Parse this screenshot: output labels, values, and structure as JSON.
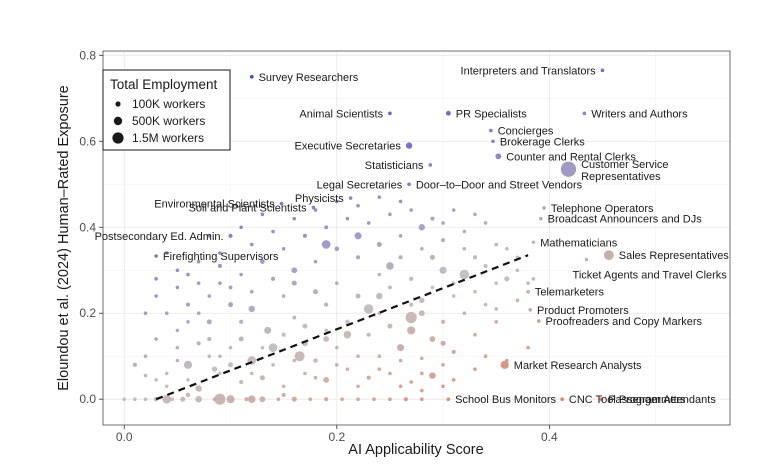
{
  "chart_data": {
    "type": "scatter",
    "xlabel": "AI Applicability Score",
    "ylabel": "Eloundou et al. (2024) Human–Rated Exposure",
    "xlim": [
      -0.02,
      0.57
    ],
    "ylim": [
      -0.06,
      0.81
    ],
    "x_ticks": [
      0.0,
      0.2,
      0.4
    ],
    "x_tick_labels": [
      "0.0",
      "0.2",
      "0.4"
    ],
    "y_ticks": [
      0.0,
      0.2,
      0.4,
      0.6,
      0.8
    ],
    "y_tick_labels": [
      "0.0",
      "0.2",
      "0.4",
      "0.6",
      "0.8"
    ],
    "grid": true,
    "legend": {
      "title": "Total Employment",
      "placement": "top-left",
      "entries": [
        {
          "label": "100K workers",
          "employment": 100000
        },
        {
          "label": "500K workers",
          "employment": 500000
        },
        {
          "label": "1.5M workers",
          "employment": 1500000
        }
      ]
    },
    "trend_line": {
      "style": "dashed",
      "x": [
        0.03,
        0.38
      ],
      "y": [
        0.0,
        0.335
      ]
    },
    "labeled_points": [
      {
        "label": "Survey Researchers",
        "x": 0.12,
        "y": 0.75,
        "employment": 15000,
        "label_side": "right"
      },
      {
        "label": "Interpreters and Translators",
        "x": 0.45,
        "y": 0.765,
        "employment": 50000,
        "label_side": "left"
      },
      {
        "label": "Animal Scientists",
        "x": 0.25,
        "y": 0.665,
        "employment": 3000,
        "label_side": "left"
      },
      {
        "label": "PR Specialists",
        "x": 0.305,
        "y": 0.665,
        "employment": 280000,
        "label_side": "right"
      },
      {
        "label": "Writers and Authors",
        "x": 0.433,
        "y": 0.665,
        "employment": 45000,
        "label_side": "right"
      },
      {
        "label": "Concierges",
        "x": 0.345,
        "y": 0.625,
        "employment": 35000,
        "label_side": "right"
      },
      {
        "label": "Brokerage Clerks",
        "x": 0.347,
        "y": 0.6,
        "employment": 45000,
        "label_side": "right"
      },
      {
        "label": "Executive Secretaries",
        "x": 0.268,
        "y": 0.59,
        "employment": 480000,
        "label_side": "left"
      },
      {
        "label": "Counter and Rental Clerks",
        "x": 0.352,
        "y": 0.565,
        "employment": 400000,
        "label_side": "right"
      },
      {
        "label": "Statisticians",
        "x": 0.288,
        "y": 0.545,
        "employment": 30000,
        "label_side": "left"
      },
      {
        "label": "Customer Service Representatives",
        "x": 0.418,
        "y": 0.535,
        "employment": 2800000,
        "label_side": "right"
      },
      {
        "label": "Legal Secretaries",
        "x": 0.268,
        "y": 0.5,
        "employment": 150000,
        "label_side": "left"
      },
      {
        "label": "Door–to–Door and Street Vendors",
        "x": 0.268,
        "y": 0.5,
        "employment": 5000,
        "label_side": "right"
      },
      {
        "label": "Physicists",
        "x": 0.213,
        "y": 0.468,
        "employment": 20000,
        "label_side": "left"
      },
      {
        "label": "Environmental Scientists",
        "x": 0.148,
        "y": 0.455,
        "employment": 85000,
        "label_side": "left"
      },
      {
        "label": "Soil and Plant Scientists",
        "x": 0.178,
        "y": 0.446,
        "employment": 10000,
        "label_side": "left"
      },
      {
        "label": "Telephone Operators",
        "x": 0.395,
        "y": 0.445,
        "employment": 5000,
        "label_side": "right"
      },
      {
        "label": "Broadcast Announcers and DJs",
        "x": 0.392,
        "y": 0.42,
        "employment": 30000,
        "label_side": "right"
      },
      {
        "label": "Postsecondary Ed. Admin.",
        "x": 0.1,
        "y": 0.38,
        "employment": 180000,
        "label_side": "left"
      },
      {
        "label": "Mathematicians",
        "x": 0.385,
        "y": 0.365,
        "employment": 2500,
        "label_side": "right"
      },
      {
        "label": "Firefighting Supervisors",
        "x": 0.03,
        "y": 0.333,
        "employment": 75000,
        "label_side": "right"
      },
      {
        "label": "Sales Representatives",
        "x": 0.456,
        "y": 0.335,
        "employment": 1150000,
        "label_side": "right"
      },
      {
        "label": "Ticket Agents and Travel Clerks",
        "x": 0.435,
        "y": 0.325,
        "employment": 120000,
        "label_side": "below"
      },
      {
        "label": "Telemarketers",
        "x": 0.38,
        "y": 0.25,
        "employment": 110000,
        "label_side": "right"
      },
      {
        "label": "Product Promoters",
        "x": 0.382,
        "y": 0.208,
        "employment": 70000,
        "label_side": "right"
      },
      {
        "label": "Proofreaders and Copy Markers",
        "x": 0.39,
        "y": 0.182,
        "employment": 10000,
        "label_side": "right"
      },
      {
        "label": "Market Research Analysts",
        "x": 0.358,
        "y": 0.08,
        "employment": 800000,
        "label_side": "right"
      },
      {
        "label": "School Bus Monitors",
        "x": 0.305,
        "y": 0.0,
        "employment": 60000,
        "label_side": "right"
      },
      {
        "label": "CNC Tool Programmers",
        "x": 0.412,
        "y": 0.0,
        "employment": 40000,
        "label_side": "right"
      },
      {
        "label": "Passenger Attendants",
        "x": 0.449,
        "y": 0.0,
        "employment": 20000,
        "label_side": "right"
      }
    ],
    "unlabeled_points": [
      [
        0.0,
        0.0,
        20000
      ],
      [
        0.01,
        0.0,
        100000
      ],
      [
        0.02,
        0.0,
        60000
      ],
      [
        0.03,
        0.0,
        250000
      ],
      [
        0.045,
        0.0,
        40000
      ],
      [
        0.055,
        0.0,
        300000
      ],
      [
        0.07,
        0.0,
        500000
      ],
      [
        0.085,
        0.0,
        150000
      ],
      [
        0.1,
        0.0,
        800000
      ],
      [
        0.115,
        0.0,
        200000
      ],
      [
        0.13,
        0.0,
        400000
      ],
      [
        0.145,
        0.0,
        120000
      ],
      [
        0.16,
        0.0,
        300000
      ],
      [
        0.175,
        0.0,
        90000
      ],
      [
        0.19,
        0.0,
        200000
      ],
      [
        0.205,
        0.0,
        60000
      ],
      [
        0.22,
        0.0,
        120000
      ],
      [
        0.235,
        0.0,
        40000
      ],
      [
        0.25,
        0.0,
        90000
      ],
      [
        0.265,
        0.0,
        200000
      ],
      [
        0.28,
        0.0,
        30000
      ],
      [
        0.04,
        0.0,
        900000
      ],
      [
        0.09,
        0.0,
        1500000
      ],
      [
        0.12,
        0.0,
        700000
      ],
      [
        0.06,
        0.01,
        250000
      ],
      [
        0.15,
        0.01,
        200000
      ],
      [
        0.01,
        0.08,
        200000
      ],
      [
        0.02,
        0.055,
        80000
      ],
      [
        0.04,
        0.03,
        60000
      ],
      [
        0.06,
        0.045,
        150000
      ],
      [
        0.07,
        0.025,
        500000
      ],
      [
        0.09,
        0.06,
        100000
      ],
      [
        0.11,
        0.04,
        200000
      ],
      [
        0.13,
        0.05,
        300000
      ],
      [
        0.15,
        0.03,
        120000
      ],
      [
        0.17,
        0.06,
        80000
      ],
      [
        0.19,
        0.045,
        400000
      ],
      [
        0.21,
        0.07,
        150000
      ],
      [
        0.23,
        0.05,
        200000
      ],
      [
        0.25,
        0.06,
        100000
      ],
      [
        0.27,
        0.04,
        150000
      ],
      [
        0.29,
        0.055,
        500000
      ],
      [
        0.31,
        0.045,
        100000
      ],
      [
        0.33,
        0.07,
        60000
      ],
      [
        0.28,
        0.095,
        80000
      ],
      [
        0.22,
        0.1,
        120000
      ],
      [
        0.16,
        0.09,
        60000
      ],
      [
        0.08,
        0.1,
        50000
      ],
      [
        0.05,
        0.12,
        100000
      ],
      [
        0.07,
        0.13,
        200000
      ],
      [
        0.09,
        0.1,
        150000
      ],
      [
        0.11,
        0.14,
        300000
      ],
      [
        0.13,
        0.12,
        150000
      ],
      [
        0.15,
        0.15,
        200000
      ],
      [
        0.17,
        0.13,
        400000
      ],
      [
        0.19,
        0.16,
        150000
      ],
      [
        0.21,
        0.18,
        250000
      ],
      [
        0.23,
        0.15,
        200000
      ],
      [
        0.25,
        0.17,
        300000
      ],
      [
        0.27,
        0.16,
        800000
      ],
      [
        0.28,
        0.2,
        400000
      ],
      [
        0.3,
        0.18,
        200000
      ],
      [
        0.32,
        0.2,
        150000
      ],
      [
        0.34,
        0.22,
        100000
      ],
      [
        0.3,
        0.13,
        300000
      ],
      [
        0.26,
        0.12,
        600000
      ],
      [
        0.24,
        0.2,
        120000
      ],
      [
        0.2,
        0.12,
        120000
      ],
      [
        0.18,
        0.09,
        250000
      ],
      [
        0.14,
        0.08,
        100000
      ],
      [
        0.06,
        0.08,
        800000
      ],
      [
        0.1,
        0.08,
        300000
      ],
      [
        0.12,
        0.09,
        900000
      ],
      [
        0.165,
        0.1,
        1200000
      ],
      [
        0.135,
        0.16,
        600000
      ],
      [
        0.085,
        0.07,
        350000
      ],
      [
        0.11,
        0.18,
        200000
      ],
      [
        0.16,
        0.19,
        180000
      ],
      [
        0.19,
        0.22,
        220000
      ],
      [
        0.22,
        0.24,
        300000
      ],
      [
        0.25,
        0.26,
        180000
      ],
      [
        0.27,
        0.28,
        200000
      ],
      [
        0.3,
        0.3,
        600000
      ],
      [
        0.31,
        0.27,
        150000
      ],
      [
        0.33,
        0.25,
        120000
      ],
      [
        0.35,
        0.27,
        100000
      ],
      [
        0.37,
        0.3,
        80000
      ],
      [
        0.28,
        0.23,
        350000
      ],
      [
        0.24,
        0.29,
        150000
      ],
      [
        0.2,
        0.27,
        120000
      ],
      [
        0.18,
        0.25,
        300000
      ],
      [
        0.15,
        0.24,
        100000
      ],
      [
        0.04,
        0.2,
        60000
      ],
      [
        0.06,
        0.22,
        200000
      ],
      [
        0.08,
        0.24,
        120000
      ],
      [
        0.1,
        0.22,
        300000
      ],
      [
        0.12,
        0.25,
        150000
      ],
      [
        0.14,
        0.28,
        200000
      ],
      [
        0.16,
        0.3,
        400000
      ],
      [
        0.18,
        0.32,
        150000
      ],
      [
        0.2,
        0.35,
        250000
      ],
      [
        0.22,
        0.33,
        200000
      ],
      [
        0.24,
        0.36,
        300000
      ],
      [
        0.26,
        0.38,
        150000
      ],
      [
        0.28,
        0.4,
        500000
      ],
      [
        0.3,
        0.37,
        200000
      ],
      [
        0.32,
        0.39,
        150000
      ],
      [
        0.34,
        0.41,
        100000
      ],
      [
        0.29,
        0.33,
        300000
      ],
      [
        0.33,
        0.33,
        200000
      ],
      [
        0.36,
        0.35,
        100000
      ],
      [
        0.03,
        0.24,
        40000
      ],
      [
        0.02,
        0.2,
        60000
      ],
      [
        0.05,
        0.16,
        120000
      ],
      [
        0.03,
        0.28,
        50000
      ],
      [
        0.05,
        0.3,
        80000
      ],
      [
        0.07,
        0.27,
        150000
      ],
      [
        0.09,
        0.31,
        200000
      ],
      [
        0.11,
        0.29,
        120000
      ],
      [
        0.13,
        0.32,
        250000
      ],
      [
        0.15,
        0.35,
        150000
      ],
      [
        0.17,
        0.38,
        200000
      ],
      [
        0.19,
        0.4,
        180000
      ],
      [
        0.21,
        0.42,
        150000
      ],
      [
        0.23,
        0.41,
        100000
      ],
      [
        0.25,
        0.43,
        150000
      ],
      [
        0.27,
        0.44,
        80000
      ],
      [
        0.29,
        0.42,
        200000
      ],
      [
        0.31,
        0.44,
        150000
      ],
      [
        0.33,
        0.43,
        60000
      ],
      [
        0.22,
        0.38,
        600000
      ],
      [
        0.16,
        0.27,
        300000
      ],
      [
        0.12,
        0.21,
        500000
      ],
      [
        0.08,
        0.18,
        300000
      ],
      [
        0.07,
        0.2,
        120000
      ],
      [
        0.1,
        0.26,
        180000
      ],
      [
        0.12,
        0.36,
        100000
      ],
      [
        0.14,
        0.39,
        150000
      ],
      [
        0.16,
        0.42,
        80000
      ],
      [
        0.18,
        0.44,
        120000
      ],
      [
        0.2,
        0.46,
        100000
      ],
      [
        0.24,
        0.47,
        80000
      ],
      [
        0.26,
        0.46,
        60000
      ],
      [
        0.22,
        0.45,
        120000
      ],
      [
        0.09,
        0.34,
        80000
      ],
      [
        0.11,
        0.4,
        60000
      ],
      [
        0.13,
        0.43,
        70000
      ],
      [
        0.06,
        0.29,
        40000
      ],
      [
        0.04,
        0.34,
        40000
      ],
      [
        0.08,
        0.38,
        60000
      ],
      [
        0.19,
        0.36,
        900000
      ],
      [
        0.25,
        0.31,
        700000
      ],
      [
        0.32,
        0.29,
        1100000
      ],
      [
        0.36,
        0.28,
        300000
      ],
      [
        0.38,
        0.27,
        100000
      ],
      [
        0.37,
        0.23,
        80000
      ],
      [
        0.35,
        0.18,
        150000
      ],
      [
        0.33,
        0.15,
        120000
      ],
      [
        0.3,
        0.08,
        60000
      ],
      [
        0.28,
        0.06,
        120000
      ],
      [
        0.26,
        0.03,
        80000
      ],
      [
        0.24,
        0.1,
        60000
      ],
      [
        0.34,
        0.1,
        80000
      ],
      [
        0.36,
        0.09,
        60000
      ],
      [
        0.38,
        0.12,
        80000
      ],
      [
        0.14,
        0.12,
        900000
      ],
      [
        0.08,
        0.14,
        200000
      ],
      [
        0.06,
        0.18,
        80000
      ],
      [
        0.03,
        0.14,
        60000
      ],
      [
        0.05,
        0.09,
        80000
      ],
      [
        0.04,
        0.06,
        50000
      ],
      [
        0.1,
        0.12,
        120000
      ],
      [
        0.12,
        0.06,
        100000
      ],
      [
        0.18,
        0.05,
        80000
      ],
      [
        0.2,
        0.08,
        150000
      ],
      [
        0.22,
        0.03,
        100000
      ],
      [
        0.24,
        0.07,
        80000
      ],
      [
        0.26,
        0.09,
        120000
      ],
      [
        0.28,
        0.02,
        70000
      ],
      [
        0.3,
        0.03,
        90000
      ],
      [
        0.02,
        0.1,
        40000
      ],
      [
        0.03,
        0.045,
        40000
      ],
      [
        0.05,
        0.26,
        50000
      ],
      [
        0.07,
        0.32,
        60000
      ],
      [
        0.09,
        0.27,
        80000
      ],
      [
        0.27,
        0.22,
        200000
      ],
      [
        0.29,
        0.26,
        80000
      ],
      [
        0.31,
        0.24,
        120000
      ],
      [
        0.35,
        0.21,
        60000
      ],
      [
        0.34,
        0.31,
        200000
      ],
      [
        0.35,
        0.36,
        60000
      ],
      [
        0.37,
        0.33,
        80000
      ],
      [
        0.385,
        0.28,
        60000
      ],
      [
        0.32,
        0.35,
        150000
      ],
      [
        0.3,
        0.41,
        100000
      ],
      [
        0.28,
        0.35,
        120000
      ],
      [
        0.26,
        0.33,
        200000
      ],
      [
        0.24,
        0.24,
        500000
      ],
      [
        0.23,
        0.21,
        1100000
      ],
      [
        0.21,
        0.15,
        700000
      ],
      [
        0.19,
        0.14,
        400000
      ],
      [
        0.17,
        0.17,
        300000
      ],
      [
        0.27,
        0.19,
        1500000
      ],
      [
        0.29,
        0.14,
        400000
      ],
      [
        0.31,
        0.11,
        200000
      ]
    ]
  }
}
